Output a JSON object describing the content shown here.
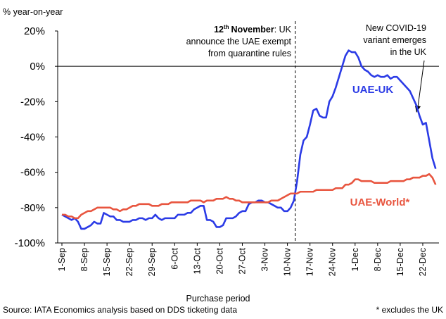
{
  "chart_data": {
    "type": "line",
    "y_axis_label": "% year-on-year",
    "x_axis_label": "Purchase period",
    "source": "Source: IATA Economics analysis based on DDS ticketing data",
    "footnote": "* excludes the UK",
    "annotation_event": {
      "day": "12",
      "suffix": "th",
      "month": "November",
      "rest": ": UK",
      "lines": [
        "announce the UAE exempt",
        "from quarantine rules"
      ]
    },
    "annotation_covid": [
      "New COVID-19",
      "variant emerges",
      "in the UK"
    ],
    "categories": [
      "1-Sep",
      null,
      null,
      null,
      null,
      null,
      null,
      "8-Sep",
      null,
      null,
      null,
      null,
      null,
      null,
      "15-Sep",
      null,
      null,
      null,
      null,
      null,
      null,
      "22-Sep",
      null,
      null,
      null,
      null,
      null,
      null,
      "29-Sep",
      null,
      null,
      null,
      null,
      null,
      null,
      "6-Oct",
      null,
      null,
      null,
      null,
      null,
      null,
      "13-Oct",
      null,
      null,
      null,
      null,
      null,
      null,
      "20-Oct",
      null,
      null,
      null,
      null,
      null,
      null,
      "27-Oct",
      null,
      null,
      null,
      null,
      null,
      null,
      "3-Nov",
      null,
      null,
      null,
      null,
      null,
      null,
      "10-Nov",
      null,
      null,
      null,
      null,
      null,
      null,
      "17-Nov",
      null,
      null,
      null,
      null,
      null,
      null,
      "24-Nov",
      null,
      null,
      null,
      null,
      null,
      null,
      "1-Dec",
      null,
      null,
      null,
      null,
      null,
      null,
      "8-Dec",
      null,
      null,
      null,
      null,
      null,
      null,
      "15-Dec",
      null,
      null,
      null,
      null,
      null,
      null,
      "22-Dec",
      null,
      null,
      null,
      null
    ],
    "series": [
      {
        "name": "UAE-UK",
        "color": "#2b3be6",
        "values": [
          -84,
          -85,
          -86,
          -87,
          -86,
          -88,
          -92,
          -92,
          -91,
          -90,
          -88,
          -89,
          -89,
          -83,
          -84,
          -85,
          -85,
          -87,
          -87,
          -88,
          -88,
          -88,
          -87,
          -87,
          -86,
          -86,
          -87,
          -86,
          -86,
          -84,
          -86,
          -87,
          -86,
          -86,
          -86,
          -86,
          -84,
          -84,
          -84,
          -83,
          -83,
          -81,
          -80,
          -79,
          -79,
          -87,
          -87,
          -88,
          -91,
          -91,
          -90,
          -86,
          -86,
          -86,
          -85,
          -83,
          -82,
          -82,
          -78,
          -77,
          -77,
          -76,
          -76,
          -77,
          -77,
          -78,
          -79,
          -80,
          -80,
          -82,
          -82,
          -80,
          -76,
          -65,
          -50,
          -42,
          -40,
          -33,
          -25,
          -24,
          -28,
          -29,
          -29,
          -20,
          -17,
          -12,
          -6,
          0,
          6,
          9,
          8,
          8,
          5,
          0,
          -2,
          -3,
          -5,
          -6,
          -5,
          -6,
          -6,
          -5,
          -7,
          -6,
          -6,
          -8,
          -10,
          -12,
          -14,
          -18,
          -22,
          -28,
          -33,
          -32,
          -42,
          -52,
          -58
        ]
      },
      {
        "name": "UAE-World*",
        "color": "#e8553f",
        "values": [
          -84,
          -84,
          -85,
          -85,
          -86,
          -86,
          -84,
          -83,
          -82,
          -82,
          -81,
          -80,
          -80,
          -80,
          -80,
          -80,
          -81,
          -81,
          -82,
          -81,
          -81,
          -80,
          -79,
          -79,
          -78,
          -78,
          -78,
          -78,
          -79,
          -79,
          -79,
          -78,
          -78,
          -78,
          -77,
          -77,
          -77,
          -77,
          -77,
          -77,
          -76,
          -76,
          -76,
          -76,
          -77,
          -76,
          -76,
          -76,
          -75,
          -75,
          -75,
          -74,
          -75,
          -75,
          -76,
          -76,
          -77,
          -77,
          -77,
          -77,
          -77,
          -77,
          -77,
          -77,
          -77,
          -76,
          -76,
          -76,
          -75,
          -74,
          -73,
          -72,
          -72,
          -72,
          -71,
          -71,
          -71,
          -71,
          -71,
          -70,
          -70,
          -70,
          -70,
          -70,
          -70,
          -69,
          -69,
          -69,
          -67,
          -67,
          -66,
          -64,
          -64,
          -65,
          -65,
          -65,
          -65,
          -66,
          -66,
          -66,
          -66,
          -66,
          -65,
          -65,
          -65,
          -65,
          -65,
          -64,
          -64,
          -63,
          -63,
          -63,
          -62,
          -62,
          -61,
          -63,
          -67
        ]
      }
    ],
    "ylim": [
      -100,
      20
    ],
    "yticks": [
      {
        "value": 20,
        "label": "20%"
      },
      {
        "value": 0,
        "label": "0%"
      },
      {
        "value": -20,
        "label": "-20%"
      },
      {
        "value": -40,
        "label": "-40%"
      },
      {
        "value": -60,
        "label": "-60%"
      },
      {
        "value": -80,
        "label": "-80%"
      },
      {
        "value": -100,
        "label": "-100%"
      }
    ],
    "grid": false
  }
}
